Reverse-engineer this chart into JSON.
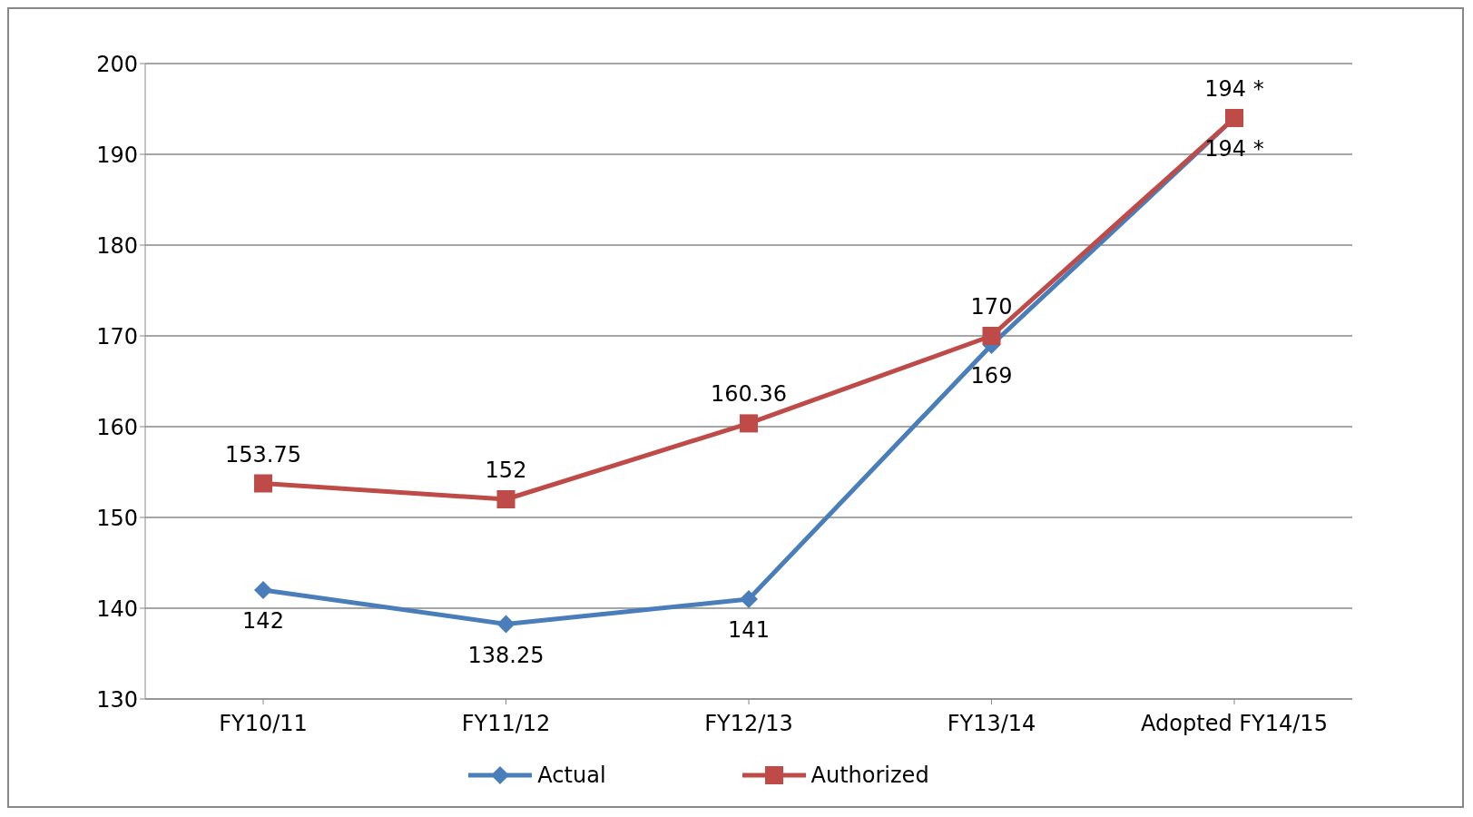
{
  "chart_data": {
    "type": "line",
    "categories": [
      "FY10/11",
      "FY11/12",
      "FY12/13",
      "FY13/14",
      "Adopted FY14/15"
    ],
    "series": [
      {
        "name": "Actual",
        "color": "#4a7ebb",
        "marker": "diamond",
        "values": [
          142,
          138.25,
          141,
          169,
          194
        ],
        "value_labels": [
          "142",
          "138.25",
          "141",
          "169",
          "194 *"
        ]
      },
      {
        "name": "Authorized",
        "color": "#be4b48",
        "marker": "square",
        "values": [
          153.75,
          152,
          160.36,
          170,
          194
        ],
        "value_labels": [
          "153.75",
          "152",
          "160.36",
          "170",
          "194 *"
        ]
      }
    ],
    "ylim": [
      130,
      200
    ],
    "yticks": [
      130,
      140,
      150,
      160,
      170,
      180,
      190,
      200
    ],
    "grid": "y",
    "legend": "bottom"
  }
}
